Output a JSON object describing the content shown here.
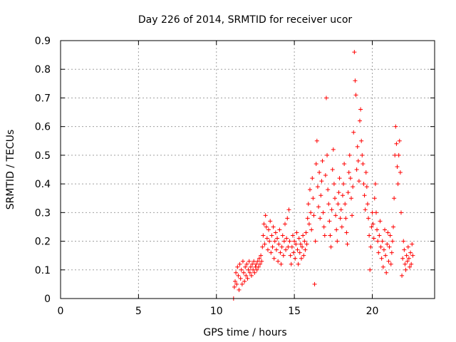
{
  "chart_data": {
    "type": "scatter",
    "title": "Day 226 of 2014, SRMTID for receiver ucor",
    "xlabel": "GPS time / hours",
    "ylabel": "SRMTID / TECUs",
    "xlim": [
      0,
      24
    ],
    "ylim": [
      0,
      0.9
    ],
    "grid": true,
    "marker": "+",
    "color": "#ff0000",
    "x_ticks": [
      0,
      5,
      10,
      15,
      20
    ],
    "y_ticks": [
      0,
      0.1,
      0.2,
      0.3,
      0.4,
      0.5,
      0.6,
      0.7,
      0.8,
      0.9
    ],
    "x_tick_labels": [
      "0",
      "5",
      "10",
      "15",
      "20"
    ],
    "y_tick_labels": [
      "0",
      "0.1",
      "0.2",
      "0.3",
      "0.4",
      "0.5",
      "0.6",
      "0.7",
      "0.8",
      "0.9"
    ],
    "series": [
      {
        "name": "SRMTID",
        "points": [
          [
            11.1,
            0.0
          ],
          [
            11.15,
            0.04
          ],
          [
            11.2,
            0.06
          ],
          [
            11.25,
            0.09
          ],
          [
            11.3,
            0.05
          ],
          [
            11.35,
            0.11
          ],
          [
            11.4,
            0.08
          ],
          [
            11.45,
            0.03
          ],
          [
            11.5,
            0.12
          ],
          [
            11.55,
            0.07
          ],
          [
            11.6,
            0.1
          ],
          [
            11.65,
            0.05
          ],
          [
            11.7,
            0.13
          ],
          [
            11.75,
            0.09
          ],
          [
            11.8,
            0.06
          ],
          [
            11.85,
            0.11
          ],
          [
            11.9,
            0.08
          ],
          [
            11.95,
            0.12
          ],
          [
            12.0,
            0.07
          ],
          [
            12.05,
            0.1
          ],
          [
            12.1,
            0.13
          ],
          [
            12.15,
            0.09
          ],
          [
            12.2,
            0.11
          ],
          [
            12.25,
            0.08
          ],
          [
            12.3,
            0.12
          ],
          [
            12.35,
            0.1
          ],
          [
            12.4,
            0.13
          ],
          [
            12.45,
            0.09
          ],
          [
            12.5,
            0.11
          ],
          [
            12.55,
            0.12
          ],
          [
            12.6,
            0.1
          ],
          [
            12.65,
            0.13
          ],
          [
            12.7,
            0.11
          ],
          [
            12.75,
            0.14
          ],
          [
            12.8,
            0.12
          ],
          [
            12.85,
            0.15
          ],
          [
            12.9,
            0.13
          ],
          [
            12.95,
            0.18
          ],
          [
            13.0,
            0.22
          ],
          [
            13.05,
            0.26
          ],
          [
            13.1,
            0.19
          ],
          [
            13.15,
            0.29
          ],
          [
            13.2,
            0.25
          ],
          [
            13.25,
            0.21
          ],
          [
            13.3,
            0.17
          ],
          [
            13.35,
            0.24
          ],
          [
            13.4,
            0.2
          ],
          [
            13.45,
            0.27
          ],
          [
            13.5,
            0.16
          ],
          [
            13.55,
            0.22
          ],
          [
            13.6,
            0.18
          ],
          [
            13.65,
            0.25
          ],
          [
            13.7,
            0.14
          ],
          [
            13.75,
            0.2
          ],
          [
            13.8,
            0.23
          ],
          [
            13.85,
            0.17
          ],
          [
            13.9,
            0.21
          ],
          [
            13.95,
            0.13
          ],
          [
            14.0,
            0.19
          ],
          [
            14.05,
            0.24
          ],
          [
            14.1,
            0.16
          ],
          [
            14.15,
            0.12
          ],
          [
            14.2,
            0.18
          ],
          [
            14.25,
            0.22
          ],
          [
            14.3,
            0.15
          ],
          [
            14.35,
            0.2
          ],
          [
            14.4,
            0.26
          ],
          [
            14.45,
            0.17
          ],
          [
            14.5,
            0.21
          ],
          [
            14.55,
            0.28
          ],
          [
            14.6,
            0.18
          ],
          [
            14.65,
            0.31
          ],
          [
            14.7,
            0.2
          ],
          [
            14.75,
            0.15
          ],
          [
            14.8,
            0.12
          ],
          [
            14.85,
            0.18
          ],
          [
            14.9,
            0.22
          ],
          [
            14.95,
            0.16
          ],
          [
            15.0,
            0.2
          ],
          [
            15.05,
            0.14
          ],
          [
            15.1,
            0.19
          ],
          [
            15.15,
            0.23
          ],
          [
            15.2,
            0.17
          ],
          [
            15.25,
            0.12
          ],
          [
            15.3,
            0.21
          ],
          [
            15.35,
            0.16
          ],
          [
            15.4,
            0.19
          ],
          [
            15.45,
            0.14
          ],
          [
            15.5,
            0.18
          ],
          [
            15.55,
            0.22
          ],
          [
            15.6,
            0.15
          ],
          [
            15.65,
            0.2
          ],
          [
            15.7,
            0.17
          ],
          [
            15.75,
            0.23
          ],
          [
            15.8,
            0.19
          ],
          [
            15.85,
            0.28
          ],
          [
            15.9,
            0.33
          ],
          [
            15.95,
            0.26
          ],
          [
            16.0,
            0.38
          ],
          [
            16.05,
            0.3
          ],
          [
            16.1,
            0.24
          ],
          [
            16.15,
            0.42
          ],
          [
            16.2,
            0.35
          ],
          [
            16.25,
            0.29
          ],
          [
            16.3,
            0.05
          ],
          [
            16.35,
            0.2
          ],
          [
            16.4,
            0.47
          ],
          [
            16.45,
            0.55
          ],
          [
            16.5,
            0.39
          ],
          [
            16.55,
            0.32
          ],
          [
            16.6,
            0.44
          ],
          [
            16.65,
            0.28
          ],
          [
            16.7,
            0.36
          ],
          [
            16.75,
            0.41
          ],
          [
            16.8,
            0.48
          ],
          [
            16.85,
            0.3
          ],
          [
            16.9,
            0.25
          ],
          [
            16.95,
            0.22
          ],
          [
            17.0,
            0.43
          ],
          [
            17.05,
            0.7
          ],
          [
            17.1,
            0.5
          ],
          [
            17.15,
            0.38
          ],
          [
            17.2,
            0.33
          ],
          [
            17.25,
            0.27
          ],
          [
            17.3,
            0.22
          ],
          [
            17.35,
            0.18
          ],
          [
            17.4,
            0.31
          ],
          [
            17.45,
            0.45
          ],
          [
            17.5,
            0.52
          ],
          [
            17.55,
            0.4
          ],
          [
            17.6,
            0.35
          ],
          [
            17.65,
            0.29
          ],
          [
            17.7,
            0.24
          ],
          [
            17.75,
            0.2
          ],
          [
            17.8,
            0.33
          ],
          [
            17.85,
            0.37
          ],
          [
            17.9,
            0.42
          ],
          [
            17.95,
            0.28
          ],
          [
            18.0,
            0.31
          ],
          [
            18.05,
            0.25
          ],
          [
            18.1,
            0.36
          ],
          [
            18.15,
            0.4
          ],
          [
            18.2,
            0.47
          ],
          [
            18.25,
            0.33
          ],
          [
            18.3,
            0.28
          ],
          [
            18.35,
            0.23
          ],
          [
            18.4,
            0.19
          ],
          [
            18.45,
            0.37
          ],
          [
            18.5,
            0.44
          ],
          [
            18.55,
            0.5
          ],
          [
            18.6,
            0.42
          ],
          [
            18.65,
            0.35
          ],
          [
            18.7,
            0.29
          ],
          [
            18.75,
            0.39
          ],
          [
            18.8,
            0.58
          ],
          [
            18.85,
            0.86
          ],
          [
            18.9,
            0.76
          ],
          [
            18.95,
            0.71
          ],
          [
            19.0,
            0.45
          ],
          [
            19.05,
            0.53
          ],
          [
            19.1,
            0.48
          ],
          [
            19.15,
            0.41
          ],
          [
            19.2,
            0.62
          ],
          [
            19.25,
            0.66
          ],
          [
            19.3,
            0.55
          ],
          [
            19.35,
            0.5
          ],
          [
            19.4,
            0.47
          ],
          [
            19.45,
            0.4
          ],
          [
            19.5,
            0.36
          ],
          [
            19.55,
            0.31
          ],
          [
            19.6,
            0.44
          ],
          [
            19.65,
            0.39
          ],
          [
            19.7,
            0.33
          ],
          [
            19.75,
            0.28
          ],
          [
            19.8,
            0.22
          ],
          [
            19.85,
            0.1
          ],
          [
            19.9,
            0.18
          ],
          [
            19.95,
            0.25
          ],
          [
            20.0,
            0.3
          ],
          [
            20.05,
            0.26
          ],
          [
            20.1,
            0.21
          ],
          [
            20.15,
            0.35
          ],
          [
            20.2,
            0.4
          ],
          [
            20.25,
            0.3
          ],
          [
            20.3,
            0.24
          ],
          [
            20.35,
            0.2
          ],
          [
            20.4,
            0.16
          ],
          [
            20.45,
            0.22
          ],
          [
            20.5,
            0.27
          ],
          [
            20.55,
            0.18
          ],
          [
            20.6,
            0.14
          ],
          [
            20.65,
            0.2
          ],
          [
            20.7,
            0.11
          ],
          [
            20.75,
            0.17
          ],
          [
            20.8,
            0.24
          ],
          [
            20.85,
            0.15
          ],
          [
            20.9,
            0.09
          ],
          [
            20.95,
            0.19
          ],
          [
            21.0,
            0.23
          ],
          [
            21.05,
            0.13
          ],
          [
            21.1,
            0.18
          ],
          [
            21.15,
            0.22
          ],
          [
            21.2,
            0.12
          ],
          [
            21.25,
            0.16
          ],
          [
            21.3,
            0.2
          ],
          [
            21.35,
            0.25
          ],
          [
            21.4,
            0.35
          ],
          [
            21.45,
            0.5
          ],
          [
            21.5,
            0.6
          ],
          [
            21.55,
            0.54
          ],
          [
            21.6,
            0.46
          ],
          [
            21.65,
            0.4
          ],
          [
            21.7,
            0.5
          ],
          [
            21.75,
            0.55
          ],
          [
            21.8,
            0.44
          ],
          [
            21.85,
            0.3
          ],
          [
            21.9,
            0.08
          ],
          [
            21.95,
            0.14
          ],
          [
            22.0,
            0.2
          ],
          [
            22.05,
            0.17
          ],
          [
            22.1,
            0.12
          ],
          [
            22.15,
            0.1
          ],
          [
            22.2,
            0.15
          ],
          [
            22.25,
            0.13
          ],
          [
            22.3,
            0.18
          ],
          [
            22.35,
            0.14
          ],
          [
            22.4,
            0.11
          ],
          [
            22.45,
            0.16
          ],
          [
            22.5,
            0.12
          ],
          [
            22.55,
            0.19
          ],
          [
            22.6,
            0.15
          ]
        ]
      }
    ]
  }
}
